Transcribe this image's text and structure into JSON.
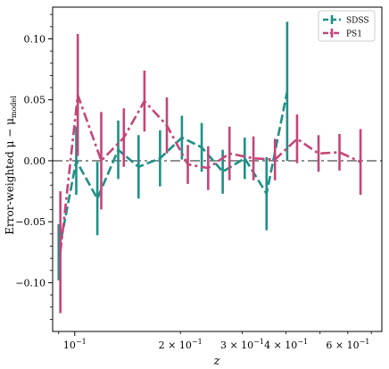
{
  "chart_data": {
    "type": "line",
    "title": "",
    "xlabel": "z",
    "ylabel": "Error-weighted μ − μ",
    "ylabel_subscript": "model",
    "xscale": "log",
    "xlim": [
      0.0865,
      0.75
    ],
    "ylim": [
      -0.14,
      0.126
    ],
    "x_ticks": [
      {
        "value": 0.1,
        "label": "10",
        "exp": "−1"
      },
      {
        "value": 0.2,
        "label": "2 × 10",
        "exp": "−1"
      },
      {
        "value": 0.3,
        "label": "3 × 10",
        "exp": "−1"
      },
      {
        "value": 0.4,
        "label": "4 × 10",
        "exp": "−1"
      },
      {
        "value": 0.6,
        "label": "6 × 10",
        "exp": "−1"
      }
    ],
    "y_ticks": [
      {
        "value": 0.1,
        "label": "0.10"
      },
      {
        "value": 0.05,
        "label": "0.05"
      },
      {
        "value": 0.0,
        "label": "0.00"
      },
      {
        "value": -0.05,
        "label": "−0.05"
      },
      {
        "value": -0.1,
        "label": "−0.10"
      }
    ],
    "legend": {
      "placement": "top-right"
    },
    "reference_line": {
      "y": 0.0,
      "color": "#777777",
      "style": "dash-dot"
    },
    "series": [
      {
        "name": "SDSS",
        "color": "#1e9088",
        "linestyle": "dashed",
        "x": [
          0.09,
          0.101,
          0.116,
          0.133,
          0.152,
          0.175,
          0.202,
          0.23,
          0.264,
          0.305,
          0.352,
          0.403
        ],
        "y": [
          -0.075,
          0.0,
          -0.031,
          0.009,
          -0.005,
          0.002,
          0.019,
          0.011,
          -0.009,
          0.002,
          -0.027,
          0.057
        ],
        "err": [
          0.023,
          0.028,
          0.03,
          0.024,
          0.026,
          0.023,
          0.018,
          0.02,
          0.018,
          0.017,
          0.03,
          0.057
        ]
      },
      {
        "name": "PS1",
        "color": "#c4457a",
        "linestyle": "dash-dot",
        "x": [
          0.091,
          0.102,
          0.119,
          0.138,
          0.158,
          0.183,
          0.21,
          0.24,
          0.276,
          0.323,
          0.372,
          0.43,
          0.495,
          0.568,
          0.652
        ],
        "y": [
          -0.075,
          0.054,
          0.0,
          0.019,
          0.049,
          0.029,
          -0.003,
          -0.006,
          0.006,
          0.002,
          0.001,
          0.018,
          0.006,
          0.007,
          -0.001
        ],
        "err": [
          0.05,
          0.05,
          0.04,
          0.024,
          0.025,
          0.023,
          0.016,
          0.018,
          0.022,
          0.018,
          0.017,
          0.02,
          0.015,
          0.015,
          0.027
        ]
      }
    ]
  }
}
